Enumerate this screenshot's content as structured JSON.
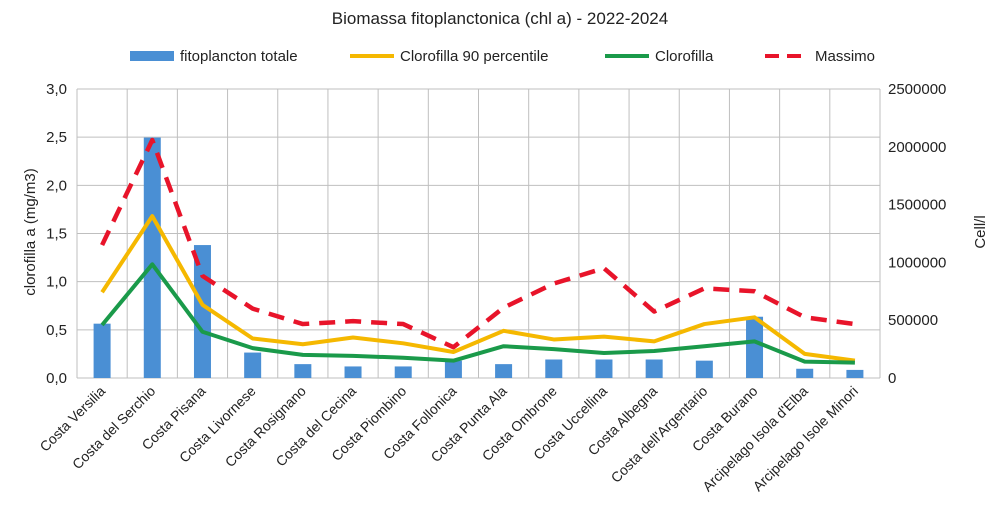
{
  "chart_data": {
    "type": "bar",
    "title": "Biomassa fitoplanctonica (chl a) - 2022-2024",
    "ylabel": "clorofilla a (mg/m3)",
    "y2label": "Cell/l",
    "ylim": [
      0,
      3
    ],
    "y2lim": [
      0,
      2500000
    ],
    "yticks": [
      "0,0",
      "0,5",
      "1,0",
      "1,5",
      "2,0",
      "2,5",
      "3,0"
    ],
    "y2ticks": [
      "0",
      "500000",
      "1000000",
      "1500000",
      "2000000",
      "2500000"
    ],
    "grid": true,
    "legend_position": "top",
    "categories": [
      "Costa Versilia",
      "Costa del Serchio",
      "Costa Pisana",
      "Costa Livornese",
      "Costa Rosignano",
      "Costa del Cecina",
      "Costa Piombino",
      "Costa Follonica",
      "Costa Punta Ala",
      "Costa Ombrone",
      "Costa Uccellina",
      "Costa Albegna",
      "Costa dell'Argentario",
      "Costa Burano",
      "Arcipelago Isola d'Elba",
      "Arcipelago Isole Minori"
    ],
    "series": [
      {
        "name": "fitoplancton totale",
        "kind": "bar",
        "axis": "right",
        "color": "#4a8fd4",
        "values": [
          470000,
          2080000,
          1150000,
          220000,
          120000,
          100000,
          100000,
          150000,
          120000,
          160000,
          160000,
          160000,
          150000,
          530000,
          80000,
          70000
        ]
      },
      {
        "name": "Clorofilla 90 percentile",
        "kind": "line",
        "axis": "left",
        "color": "#f5b800",
        "values": [
          0.89,
          1.68,
          0.76,
          0.41,
          0.35,
          0.42,
          0.36,
          0.27,
          0.49,
          0.4,
          0.43,
          0.38,
          0.56,
          0.63,
          0.25,
          0.18
        ]
      },
      {
        "name": "Clorofilla",
        "kind": "line",
        "axis": "left",
        "color": "#1a9a4a",
        "values": [
          0.55,
          1.18,
          0.48,
          0.31,
          0.24,
          0.23,
          0.21,
          0.18,
          0.33,
          0.3,
          0.26,
          0.28,
          0.33,
          0.38,
          0.17,
          0.16
        ]
      },
      {
        "name": "Massimo",
        "kind": "dashed",
        "axis": "left",
        "color": "#e8142a",
        "values": [
          1.38,
          2.47,
          1.06,
          0.72,
          0.56,
          0.59,
          0.56,
          0.32,
          0.73,
          0.98,
          1.14,
          0.69,
          0.93,
          0.9,
          0.63,
          0.56
        ]
      }
    ]
  }
}
